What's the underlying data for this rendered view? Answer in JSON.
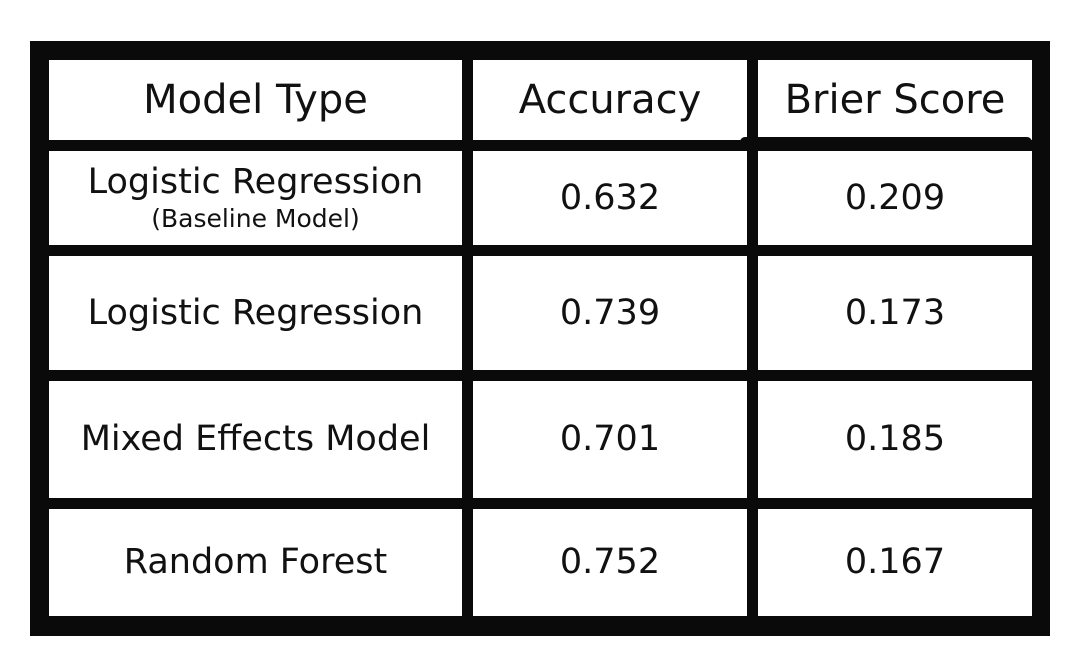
{
  "table": {
    "headers": [
      "Model Type",
      "Accuracy",
      "Brier Score"
    ],
    "rows": [
      {
        "model": "Logistic Regression",
        "note": "(Baseline Model)",
        "accuracy": "0.632",
        "brier": "0.209"
      },
      {
        "model": "Logistic Regression",
        "note": "",
        "accuracy": "0.739",
        "brier": "0.173"
      },
      {
        "model": "Mixed Effects Model",
        "note": "",
        "accuracy": "0.701",
        "brier": "0.185"
      },
      {
        "model": "Random Forest",
        "note": "",
        "accuracy": "0.752",
        "brier": "0.167"
      }
    ]
  }
}
